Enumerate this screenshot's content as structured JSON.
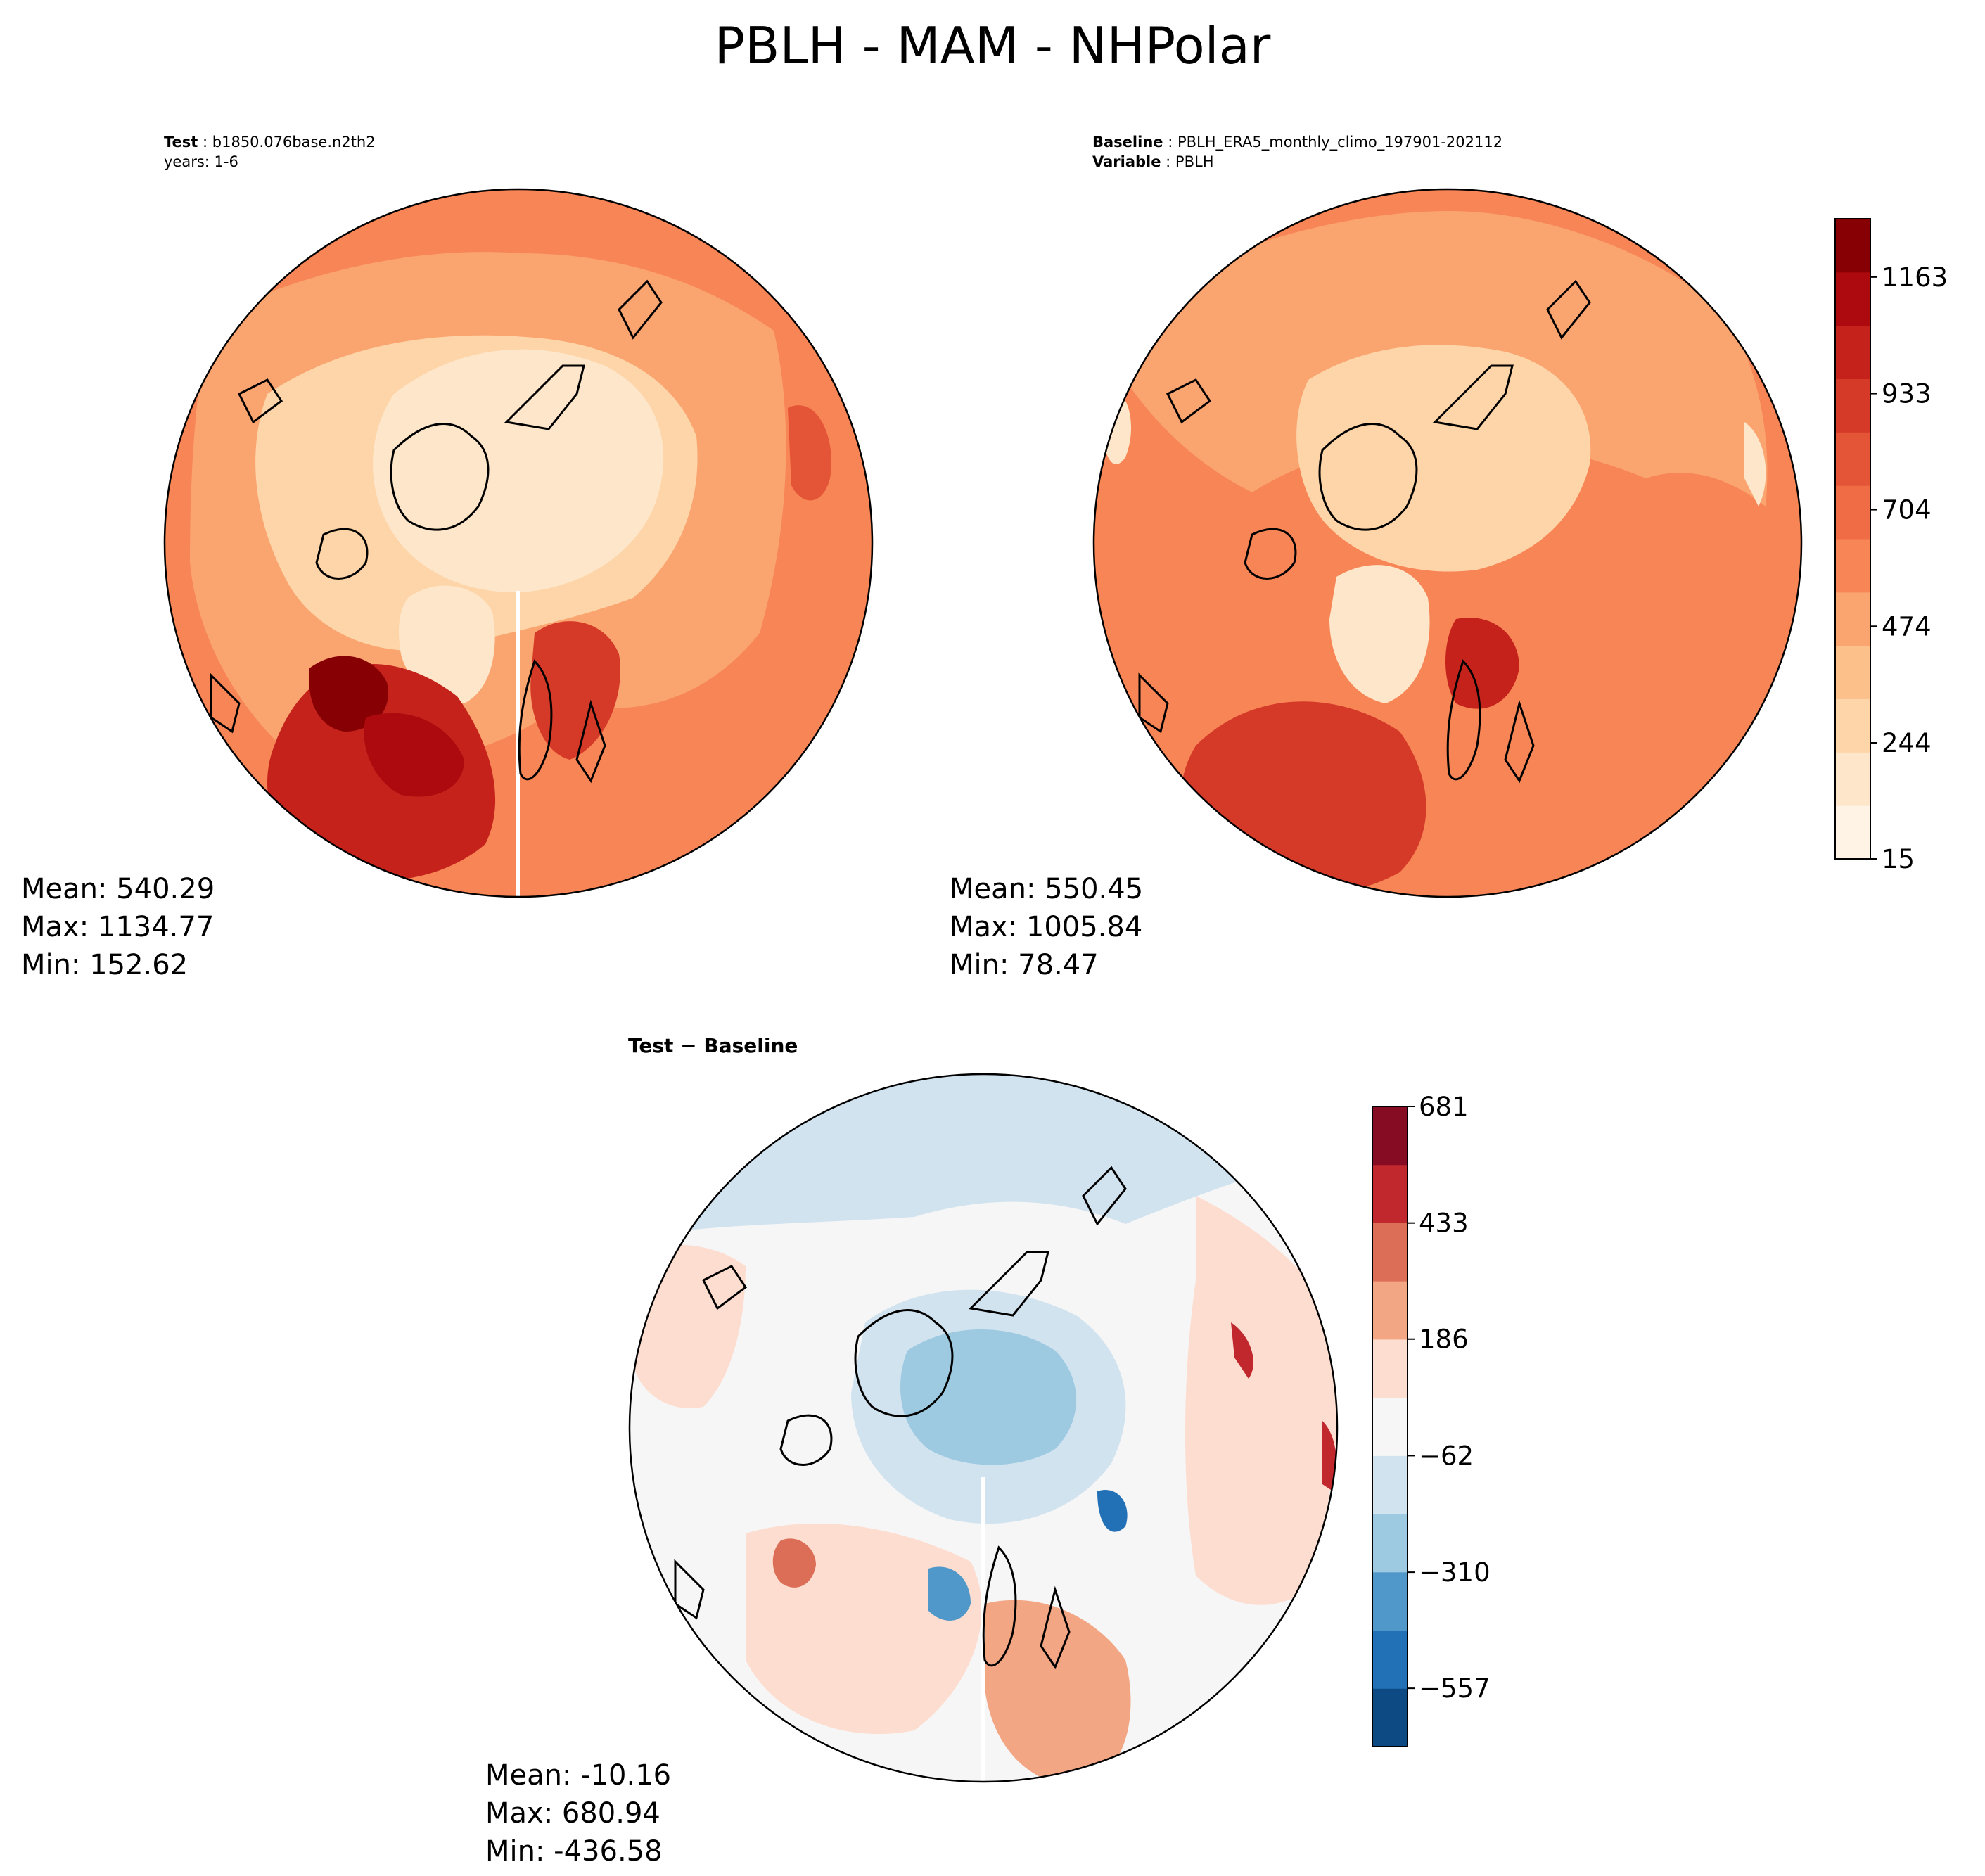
{
  "title": "PBLH - MAM - NHPolar",
  "chart_data": [
    {
      "type": "heatmap",
      "projection": "north-polar-stereographic",
      "info_label_1": "Test",
      "info_value_1": "b1850.076base.n2th2",
      "info_line_2": "years: 1-6",
      "stats": {
        "mean": "Mean: 540.29",
        "max": "Max: 1134.77",
        "min": "Min: 152.62"
      },
      "colormap": "OrRd-like (Reds)",
      "shares_colorbar_with": "baseline"
    },
    {
      "type": "heatmap",
      "projection": "north-polar-stereographic",
      "info_label_1": "Baseline",
      "info_value_1": "PBLH_ERA5_monthly_climo_197901-202112",
      "info_label_2": "Variable",
      "info_value_2": "PBLH",
      "stats": {
        "mean": "Mean: 550.45",
        "max": "Max: 1005.84",
        "min": "Min: 78.47"
      },
      "colorbar": {
        "ticks": [
          "1163",
          "933",
          "704",
          "474",
          "244",
          "15"
        ],
        "tick_values": [
          1163,
          933,
          704,
          474,
          244,
          15
        ],
        "range": [
          15,
          1278
        ],
        "colors": [
          "#fff3e5",
          "#fde6c9",
          "#fdd5a8",
          "#fcc08a",
          "#faa46f",
          "#f78556",
          "#f06c45",
          "#e45437",
          "#d53a29",
          "#c4221b",
          "#ad0a0f",
          "#870003"
        ]
      }
    },
    {
      "type": "heatmap",
      "projection": "north-polar-stereographic",
      "panel_title": "Test − Baseline",
      "stats": {
        "mean": "Mean: -10.16",
        "max": "Max: 680.94",
        "min": "Min: -436.58"
      },
      "colorbar": {
        "ticks": [
          "681",
          "433",
          "186",
          "−62",
          "−310",
          "−557"
        ],
        "tick_values": [
          681,
          433,
          186,
          -62,
          -310,
          -557
        ],
        "range": [
          -681,
          681
        ],
        "colors": [
          "#0d4a84",
          "#2270b5",
          "#4f98c9",
          "#9ecae1",
          "#d2e3f0",
          "#f6f6f6",
          "#fdddd0",
          "#f3a683",
          "#dc6e58",
          "#c0282e",
          "#850c22"
        ]
      }
    }
  ],
  "colors": {
    "test_light": "#fde6c9",
    "test_mid": "#f78556",
    "test_dark": "#c4221b",
    "diff_blue": "#d2e3f0",
    "diff_red": "#fdddd0",
    "diff_white": "#f6f6f6"
  }
}
